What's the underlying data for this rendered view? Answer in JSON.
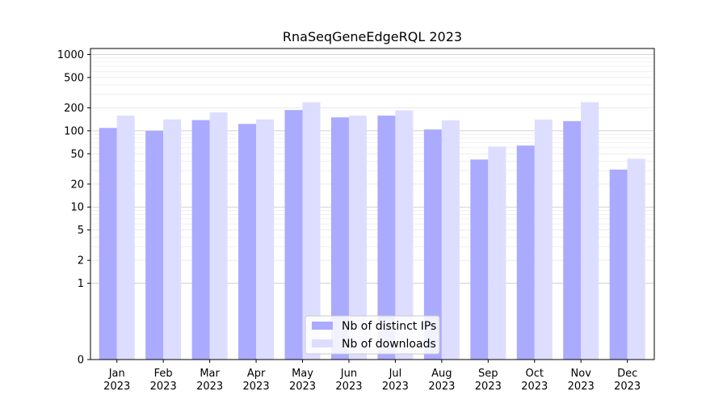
{
  "chart_data": {
    "type": "bar",
    "title": "RnaSeqGeneEdgeRQL 2023",
    "xlabel": "",
    "ylabel": "",
    "yscale": "symlog",
    "ylim": [
      0,
      1200
    ],
    "yticks": [
      0,
      1,
      2,
      5,
      10,
      20,
      50,
      100,
      200,
      500,
      1000
    ],
    "categories": [
      {
        "month": "Jan",
        "year": "2023"
      },
      {
        "month": "Feb",
        "year": "2023"
      },
      {
        "month": "Mar",
        "year": "2023"
      },
      {
        "month": "Apr",
        "year": "2023"
      },
      {
        "month": "May",
        "year": "2023"
      },
      {
        "month": "Jun",
        "year": "2023"
      },
      {
        "month": "Jul",
        "year": "2023"
      },
      {
        "month": "Aug",
        "year": "2023"
      },
      {
        "month": "Sep",
        "year": "2023"
      },
      {
        "month": "Oct",
        "year": "2023"
      },
      {
        "month": "Nov",
        "year": "2023"
      },
      {
        "month": "Dec",
        "year": "2023"
      }
    ],
    "series": [
      {
        "name": "Nb of distinct IPs",
        "color": "#aaaaff",
        "values": [
          109,
          100,
          138,
          123,
          187,
          150,
          158,
          104,
          42,
          64,
          134,
          31
        ]
      },
      {
        "name": "Nb of downloads",
        "color": "#ddddff",
        "values": [
          158,
          141,
          174,
          141,
          237,
          158,
          185,
          137,
          62,
          140,
          237,
          43
        ]
      }
    ],
    "grid": true,
    "legend_position": "bottom-center"
  }
}
